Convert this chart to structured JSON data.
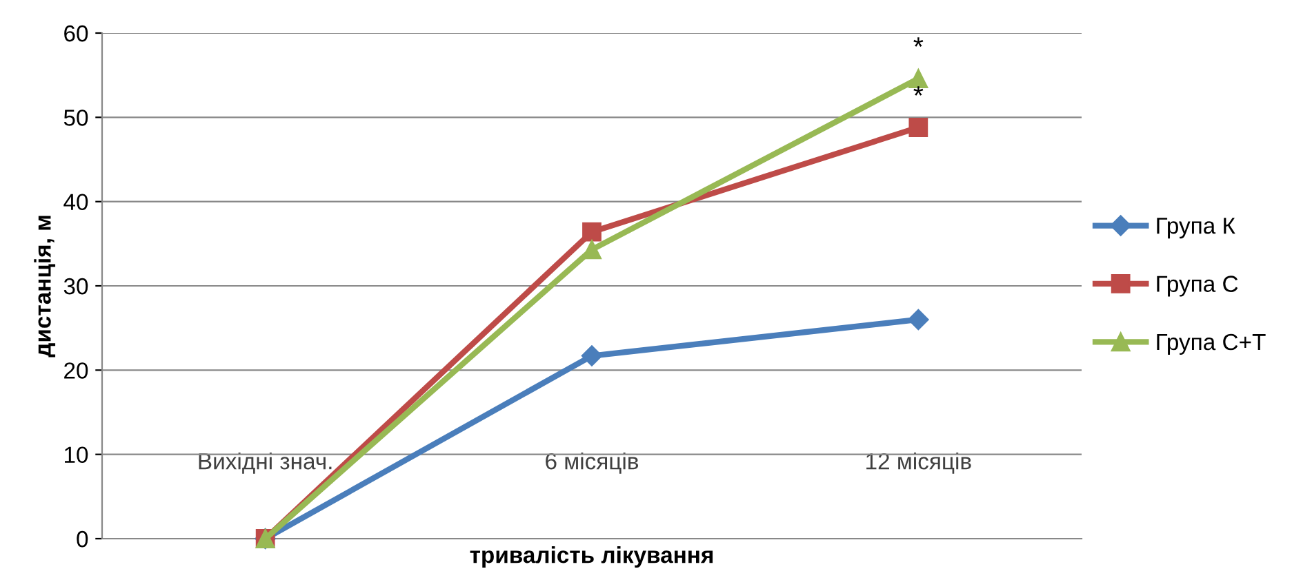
{
  "chart_data": {
    "type": "line",
    "xlabel": "тривалість лікування",
    "ylabel": "дистанція, м",
    "categories": [
      "Вихідні знач.",
      "6 місяців",
      "12 місяців"
    ],
    "series": [
      {
        "name": "Група К",
        "color": "#4a7ebb",
        "marker": "diamond",
        "values": [
          0,
          21.7,
          26
        ]
      },
      {
        "name": "Група С",
        "color": "#be4b48",
        "marker": "square",
        "values": [
          0,
          36.4,
          48.8
        ]
      },
      {
        "name": "Група С+Т",
        "color": "#98b954",
        "marker": "triangle",
        "values": [
          0,
          34.3,
          54.6
        ]
      }
    ],
    "ylim": [
      0,
      60
    ],
    "yticks": [
      0,
      10,
      20,
      30,
      40,
      50,
      60
    ],
    "grid": "y",
    "legend": "right",
    "line_style": "solid",
    "annotations": [
      {
        "text": "*",
        "x": "12 місяців",
        "y": 48.8
      },
      {
        "text": "*",
        "x": "12 місяців",
        "y": 54.6
      }
    ]
  }
}
